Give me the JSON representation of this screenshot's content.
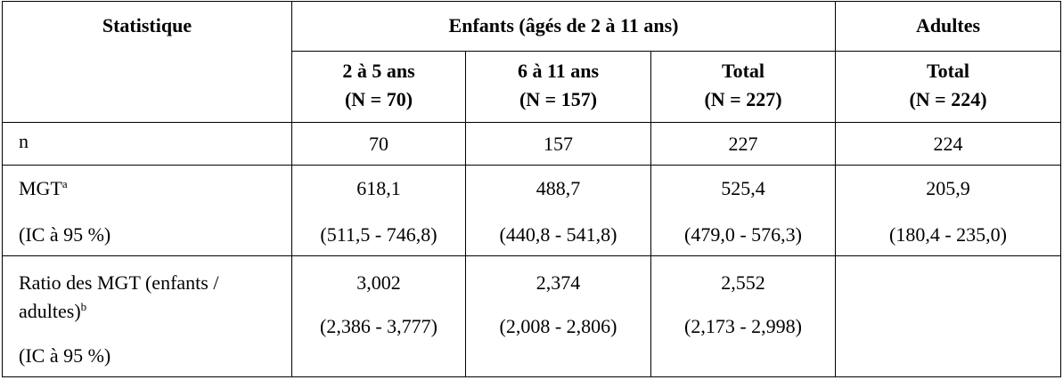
{
  "table": {
    "header": {
      "statistique": "Statistique",
      "enfants": "Enfants (âgés de 2 à 11 ans)",
      "adultes": "Adultes",
      "columns": [
        [
          "2 à 5 ans",
          "(N = 70)"
        ],
        [
          "6 à 11 ans",
          "(N = 157)"
        ],
        [
          "Total",
          "(N = 227)"
        ],
        [
          "Total",
          "(N = 224)"
        ]
      ]
    },
    "rows": [
      {
        "label": "n",
        "values": [
          "70",
          "157",
          "227",
          "224"
        ]
      },
      {
        "label": "MGT",
        "note": "a",
        "ci_label": "(IC à 95 %)",
        "values": [
          "618,1",
          "488,7",
          "525,4",
          "205,9"
        ],
        "ci": [
          "(511,5 - 746,8)",
          "(440,8 - 541,8)",
          "(479,0 - 576,3)",
          "(180,4 - 235,0)"
        ]
      },
      {
        "label": "Ratio des MGT (enfants / adultes)",
        "note": "b",
        "ci_label": "(IC à 95 %)",
        "values": [
          "3,002",
          "2,374",
          "2,552"
        ],
        "ci": [
          "(2,386 - 3,777)",
          "(2,008 - 2,806)",
          "(2,173 - 2,998)"
        ]
      }
    ]
  }
}
